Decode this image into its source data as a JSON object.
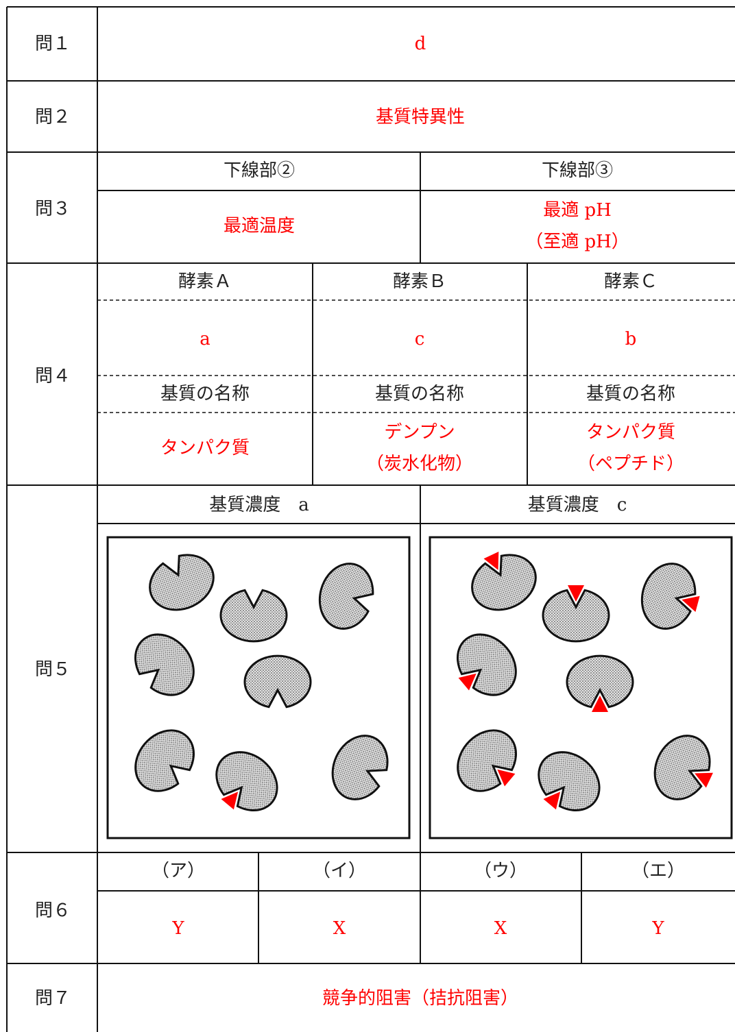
{
  "q1": {
    "label": "問１",
    "answer": "d"
  },
  "q2": {
    "label": "問２",
    "answer": "基質特異性"
  },
  "q3": {
    "label": "問３",
    "columns": [
      {
        "header": "下線部②",
        "answer": [
          "最適温度"
        ]
      },
      {
        "header": "下線部③",
        "answer": [
          "最適 pH",
          "（至適 pH）"
        ]
      }
    ]
  },
  "q4": {
    "label": "問４",
    "columns": [
      {
        "header": "酵素Ａ",
        "answer": "a",
        "substrate_header": "基質の名称",
        "substrate": [
          "タンパク質"
        ]
      },
      {
        "header": "酵素Ｂ",
        "answer": "c",
        "substrate_header": "基質の名称",
        "substrate": [
          "デンプン",
          "（炭水化物）"
        ]
      },
      {
        "header": "酵素Ｃ",
        "answer": "b",
        "substrate_header": "基質の名称",
        "substrate": [
          "タンパク質",
          "（ペプチド）"
        ]
      }
    ]
  },
  "q5": {
    "label": "問５",
    "panels": [
      {
        "header": "基質濃度　a"
      },
      {
        "header": "基質濃度　c"
      }
    ]
  },
  "q6": {
    "label": "問６",
    "columns": [
      {
        "header": "（ア）",
        "answer": "Y"
      },
      {
        "header": "（イ）",
        "answer": "X"
      },
      {
        "header": "（ウ）",
        "answer": "X"
      },
      {
        "header": "（エ）",
        "answer": "Y"
      }
    ]
  },
  "q7": {
    "label": "問７",
    "answer": "競争的阻害（拮抗阻害）"
  }
}
